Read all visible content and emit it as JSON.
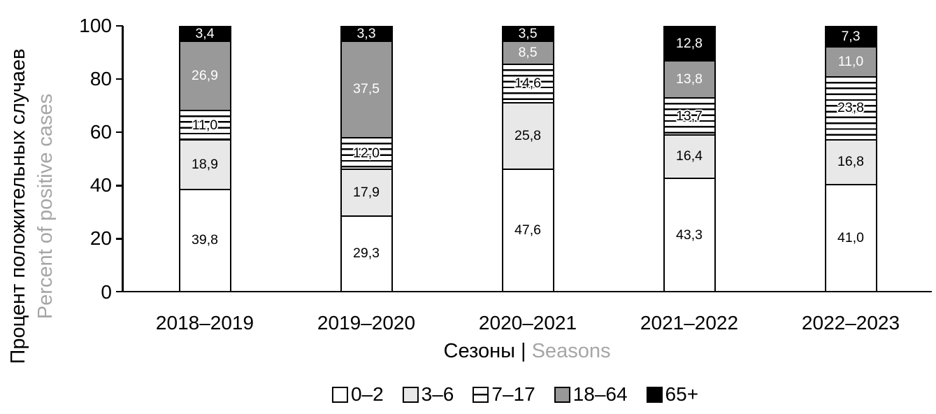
{
  "chart": {
    "y_axis": {
      "title_ru": "Процент положительных случаев",
      "title_en": "Percent of positive cases",
      "ticks": [
        100,
        80,
        60,
        40,
        20,
        0
      ]
    },
    "x_axis": {
      "title_ru": "Сезоны |",
      "title_en": "Seasons"
    },
    "colors": {
      "axis": "#000000",
      "secondary_text": "#a6a6a6",
      "fill_white": "#ffffff",
      "fill_light_gray": "#e8e8e8",
      "fill_dark_gray": "#999999",
      "fill_black": "#000000"
    }
  },
  "chart_data": {
    "type": "bar",
    "stacked": true,
    "orientation": "vertical",
    "categories": [
      "2018–2019",
      "2019–2020",
      "2020–2021",
      "2021–2022",
      "2022–2023"
    ],
    "series": [
      {
        "name": "0–2",
        "values": [
          39.8,
          29.3,
          47.6,
          43.3,
          41.0
        ],
        "display_labels": [
          "39,8",
          "29,3",
          "47,6",
          "43,3",
          "41,0"
        ],
        "fill": "#ffffff",
        "pattern": "solid",
        "label_color": "#000000"
      },
      {
        "name": "3–6",
        "values": [
          18.9,
          17.9,
          25.8,
          16.4,
          16.8
        ],
        "display_labels": [
          "18,9",
          "17,9",
          "25,8",
          "16,4",
          "16,8"
        ],
        "fill": "#e8e8e8",
        "pattern": "solid",
        "label_color": "#000000"
      },
      {
        "name": "7–17",
        "values": [
          11.0,
          12.0,
          14.6,
          13.7,
          23.8
        ],
        "display_labels": [
          "11,0",
          "12,0",
          "14,6",
          "13,7",
          "23,8"
        ],
        "fill": "#ffffff",
        "pattern": "horizontal-stripes",
        "label_color": "#000000"
      },
      {
        "name": "18–64",
        "values": [
          26.9,
          37.5,
          8.5,
          13.8,
          11.0
        ],
        "display_labels": [
          "26,9",
          "37,5",
          "8,5",
          "13,8",
          "11,0"
        ],
        "fill": "#999999",
        "pattern": "solid",
        "label_color": "#ffffff"
      },
      {
        "name": "65+",
        "values": [
          3.4,
          3.3,
          3.5,
          12.8,
          7.3
        ],
        "display_labels": [
          "3,4",
          "3,3",
          "3,5",
          "12,8",
          "7,3"
        ],
        "fill": "#000000",
        "pattern": "solid",
        "label_color": "#ffffff"
      }
    ],
    "ylim": [
      0,
      100
    ],
    "grid": false,
    "legend_position": "bottom",
    "xlabel": "Сезоны | Seasons",
    "ylabel": "Процент положительных случаев | Percent of positive cases",
    "value_format": "comma-decimal"
  },
  "legend": {
    "items": [
      {
        "label": "0–2"
      },
      {
        "label": "3–6"
      },
      {
        "label": "7–17"
      },
      {
        "label": "18–64"
      },
      {
        "label": "65+"
      }
    ]
  }
}
